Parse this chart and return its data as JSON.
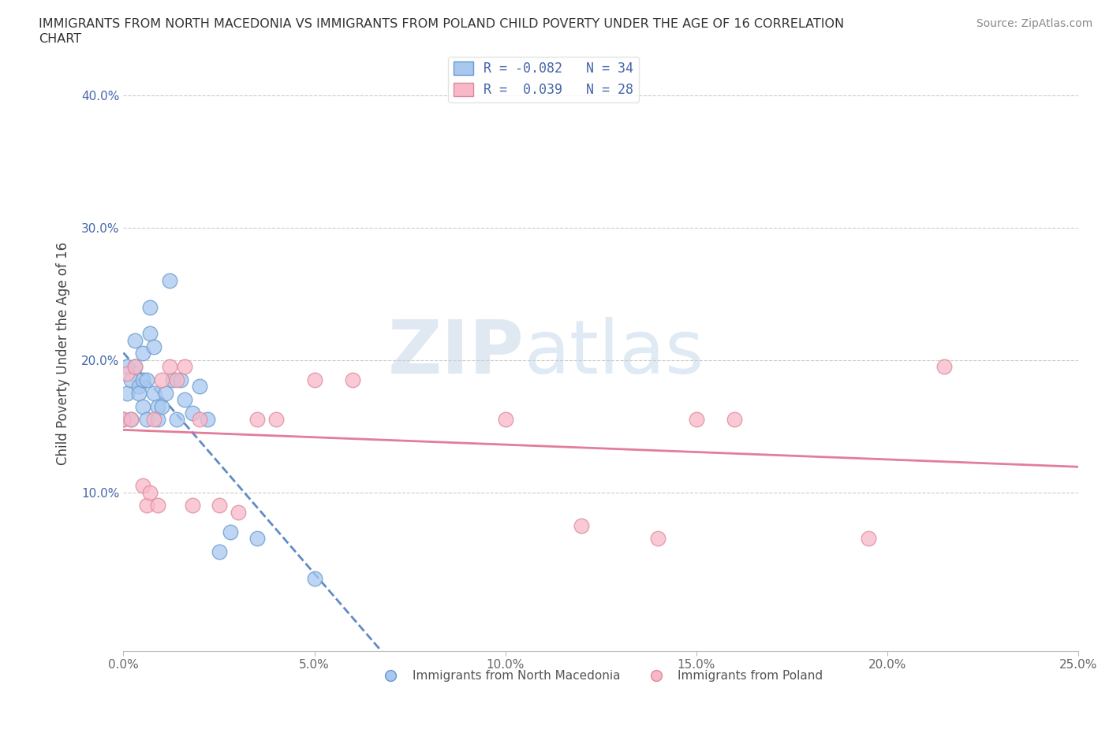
{
  "title": "IMMIGRANTS FROM NORTH MACEDONIA VS IMMIGRANTS FROM POLAND CHILD POVERTY UNDER THE AGE OF 16 CORRELATION\nCHART",
  "source_text": "Source: ZipAtlas.com",
  "ylabel": "Child Poverty Under the Age of 16",
  "xlim": [
    0.0,
    0.25
  ],
  "ylim": [
    -0.02,
    0.43
  ],
  "xticks": [
    0.0,
    0.05,
    0.1,
    0.15,
    0.2,
    0.25
  ],
  "xticklabels": [
    "0.0%",
    "5.0%",
    "10.0%",
    "15.0%",
    "20.0%",
    "25.0%"
  ],
  "yticks": [
    0.1,
    0.2,
    0.3,
    0.4
  ],
  "yticklabels": [
    "10.0%",
    "20.0%",
    "30.0%",
    "40.0%"
  ],
  "watermark_zip": "ZIP",
  "watermark_atlas": "atlas",
  "legend_label1": "R = -0.082   N = 34",
  "legend_label2": "R =  0.039   N = 28",
  "series1_color": "#a8c8f0",
  "series1_edge": "#6699cc",
  "series2_color": "#f8b8c8",
  "series2_edge": "#dd8899",
  "trendline1_color": "#4477bb",
  "trendline2_color": "#dd6688",
  "grid_color": "#cccccc",
  "series1_name": "Immigrants from North Macedonia",
  "series2_name": "Immigrants from Poland",
  "text_color": "#4466aa",
  "axis_label_color": "#444444",
  "title_color": "#333333",
  "source_color": "#888888",
  "macedonia_x": [
    0.0,
    0.001,
    0.001,
    0.002,
    0.002,
    0.003,
    0.003,
    0.004,
    0.004,
    0.005,
    0.005,
    0.005,
    0.006,
    0.006,
    0.007,
    0.007,
    0.008,
    0.008,
    0.009,
    0.009,
    0.01,
    0.011,
    0.012,
    0.013,
    0.014,
    0.015,
    0.016,
    0.018,
    0.02,
    0.022,
    0.025,
    0.028,
    0.035,
    0.05
  ],
  "macedonia_y": [
    0.155,
    0.175,
    0.195,
    0.185,
    0.155,
    0.195,
    0.215,
    0.18,
    0.175,
    0.165,
    0.185,
    0.205,
    0.155,
    0.185,
    0.22,
    0.24,
    0.21,
    0.175,
    0.165,
    0.155,
    0.165,
    0.175,
    0.26,
    0.185,
    0.155,
    0.185,
    0.17,
    0.16,
    0.18,
    0.155,
    0.055,
    0.07,
    0.065,
    0.035
  ],
  "poland_x": [
    0.0,
    0.001,
    0.002,
    0.003,
    0.005,
    0.006,
    0.007,
    0.008,
    0.009,
    0.01,
    0.012,
    0.014,
    0.016,
    0.018,
    0.02,
    0.025,
    0.03,
    0.035,
    0.04,
    0.05,
    0.06,
    0.1,
    0.12,
    0.14,
    0.15,
    0.16,
    0.195,
    0.215
  ],
  "poland_y": [
    0.155,
    0.19,
    0.155,
    0.195,
    0.105,
    0.09,
    0.1,
    0.155,
    0.09,
    0.185,
    0.195,
    0.185,
    0.195,
    0.09,
    0.155,
    0.09,
    0.085,
    0.155,
    0.155,
    0.185,
    0.185,
    0.155,
    0.075,
    0.065,
    0.155,
    0.155,
    0.065,
    0.195
  ]
}
